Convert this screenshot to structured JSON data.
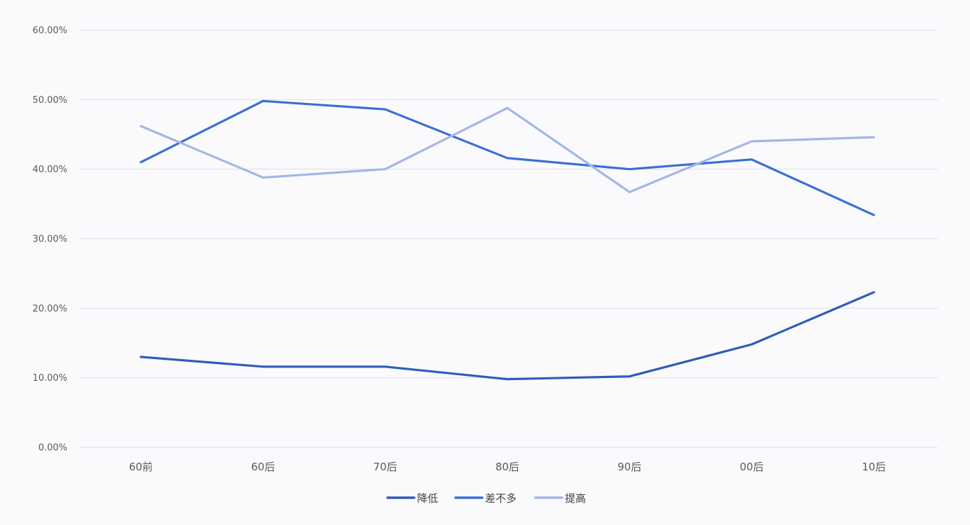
{
  "chart_data": {
    "type": "line",
    "title": "",
    "xlabel": "",
    "ylabel": "",
    "categories": [
      "60前",
      "60后",
      "70后",
      "80后",
      "90后",
      "00后",
      "10后"
    ],
    "ylim": [
      0,
      0.6
    ],
    "yticks": [
      0,
      0.1,
      0.2,
      0.3,
      0.4,
      0.5,
      0.6
    ],
    "ytick_labels": [
      "0.00%",
      "10.00%",
      "20.00%",
      "30.00%",
      "40.00%",
      "50.00%",
      "60.00%"
    ],
    "grid": true,
    "legend_position": "bottom",
    "series": [
      {
        "name": "降低",
        "color": "#2f5cb8",
        "values": [
          0.13,
          0.116,
          0.116,
          0.098,
          0.102,
          0.148,
          0.223
        ]
      },
      {
        "name": "差不多",
        "color": "#3a6fd4",
        "values": [
          0.41,
          0.498,
          0.486,
          0.416,
          0.4,
          0.414,
          0.334
        ]
      },
      {
        "name": "提高",
        "color": "#a3b6e8",
        "values": [
          0.462,
          0.388,
          0.4,
          0.488,
          0.367,
          0.44,
          0.446
        ]
      }
    ]
  }
}
